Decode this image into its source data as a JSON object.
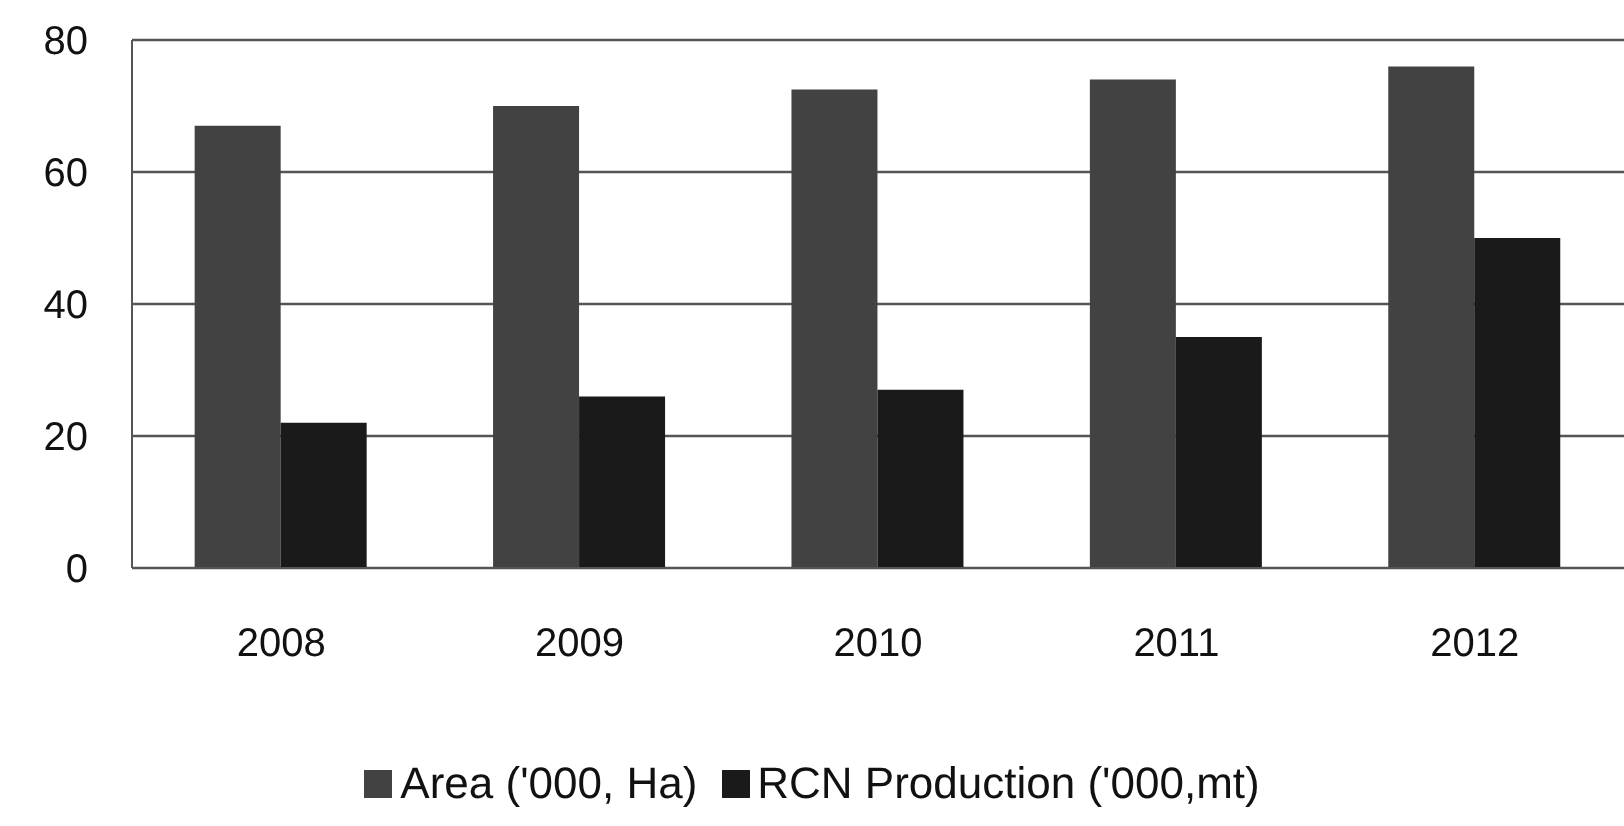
{
  "chart_data": {
    "type": "bar",
    "categories": [
      "2008",
      "2009",
      "2010",
      "2011",
      "2012"
    ],
    "series": [
      {
        "name": "Area ('000, Ha)",
        "color": "#424242",
        "values": [
          67,
          70,
          72.5,
          74,
          76
        ]
      },
      {
        "name": "RCN Production ('000,mt)",
        "color": "#1a1a1a",
        "values": [
          22,
          26,
          27,
          35,
          50
        ]
      }
    ],
    "ylim": [
      0,
      80
    ],
    "yticks": [
      0,
      20,
      40,
      60,
      80
    ],
    "grid": "y",
    "legend": "bottom"
  }
}
